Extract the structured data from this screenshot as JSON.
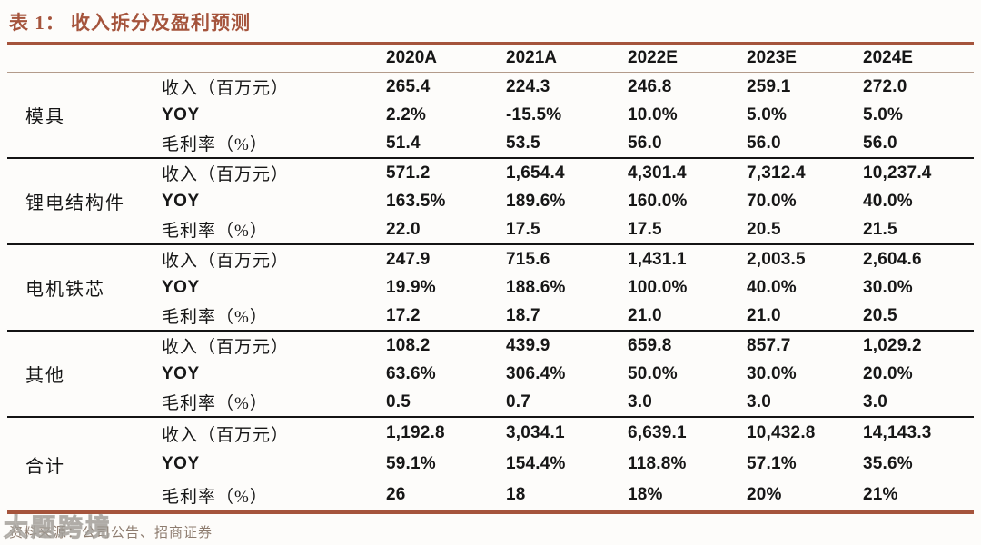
{
  "accent_color": "#A5543C",
  "title": "表 1： 收入拆分及盈利预测",
  "columns": [
    "2020A",
    "2021A",
    "2022E",
    "2023E",
    "2024E"
  ],
  "blocks": [
    {
      "category": "模具",
      "rows": [
        {
          "label": "收入（百万元）",
          "values": [
            "265.4",
            "224.3",
            "246.8",
            "259.1",
            "272.0"
          ]
        },
        {
          "label": "YOY",
          "values": [
            "2.2%",
            "-15.5%",
            "10.0%",
            "5.0%",
            "5.0%"
          ]
        },
        {
          "label": "毛利率（%）",
          "values": [
            "51.4",
            "53.5",
            "56.0",
            "56.0",
            "56.0"
          ]
        }
      ]
    },
    {
      "category": "锂电结构件",
      "rows": [
        {
          "label": "收入（百万元）",
          "values": [
            "571.2",
            "1,654.4",
            "4,301.4",
            "7,312.4",
            "10,237.4"
          ]
        },
        {
          "label": "YOY",
          "values": [
            "163.5%",
            "189.6%",
            "160.0%",
            "70.0%",
            "40.0%"
          ]
        },
        {
          "label": "毛利率（%）",
          "values": [
            "22.0",
            "17.5",
            "17.5",
            "20.5",
            "21.5"
          ]
        }
      ]
    },
    {
      "category": "电机铁芯",
      "rows": [
        {
          "label": "收入（百万元）",
          "values": [
            "247.9",
            "715.6",
            "1,431.1",
            "2,003.5",
            "2,604.6"
          ]
        },
        {
          "label": "YOY",
          "values": [
            "19.9%",
            "188.6%",
            "100.0%",
            "40.0%",
            "30.0%"
          ]
        },
        {
          "label": "毛利率（%）",
          "values": [
            "17.2",
            "18.7",
            "21.0",
            "21.0",
            "20.5"
          ]
        }
      ]
    },
    {
      "category": "其他",
      "rows": [
        {
          "label": "收入（百万元）",
          "values": [
            "108.2",
            "439.9",
            "659.8",
            "857.7",
            "1,029.2"
          ]
        },
        {
          "label": "YOY",
          "values": [
            "63.6%",
            "306.4%",
            "50.0%",
            "30.0%",
            "20.0%"
          ]
        },
        {
          "label": "毛利率（%）",
          "values": [
            "0.5",
            "0.7",
            "3.0",
            "3.0",
            "3.0"
          ]
        }
      ]
    },
    {
      "category": "合计",
      "rows": [
        {
          "label": "收入（百万元）",
          "values": [
            "1,192.8",
            "3,034.1",
            "6,639.1",
            "10,432.8",
            "14,143.3"
          ]
        },
        {
          "label": "YOY",
          "values": [
            "59.1%",
            "154.4%",
            "118.8%",
            "57.1%",
            "35.6%"
          ]
        },
        {
          "label": "毛利率（%）",
          "values": [
            "26",
            "18",
            "18%",
            "20%",
            "21%"
          ]
        }
      ]
    }
  ],
  "footer": {
    "source": "资料来源：公司公告、招商证券",
    "watermark": "大题跨境"
  }
}
